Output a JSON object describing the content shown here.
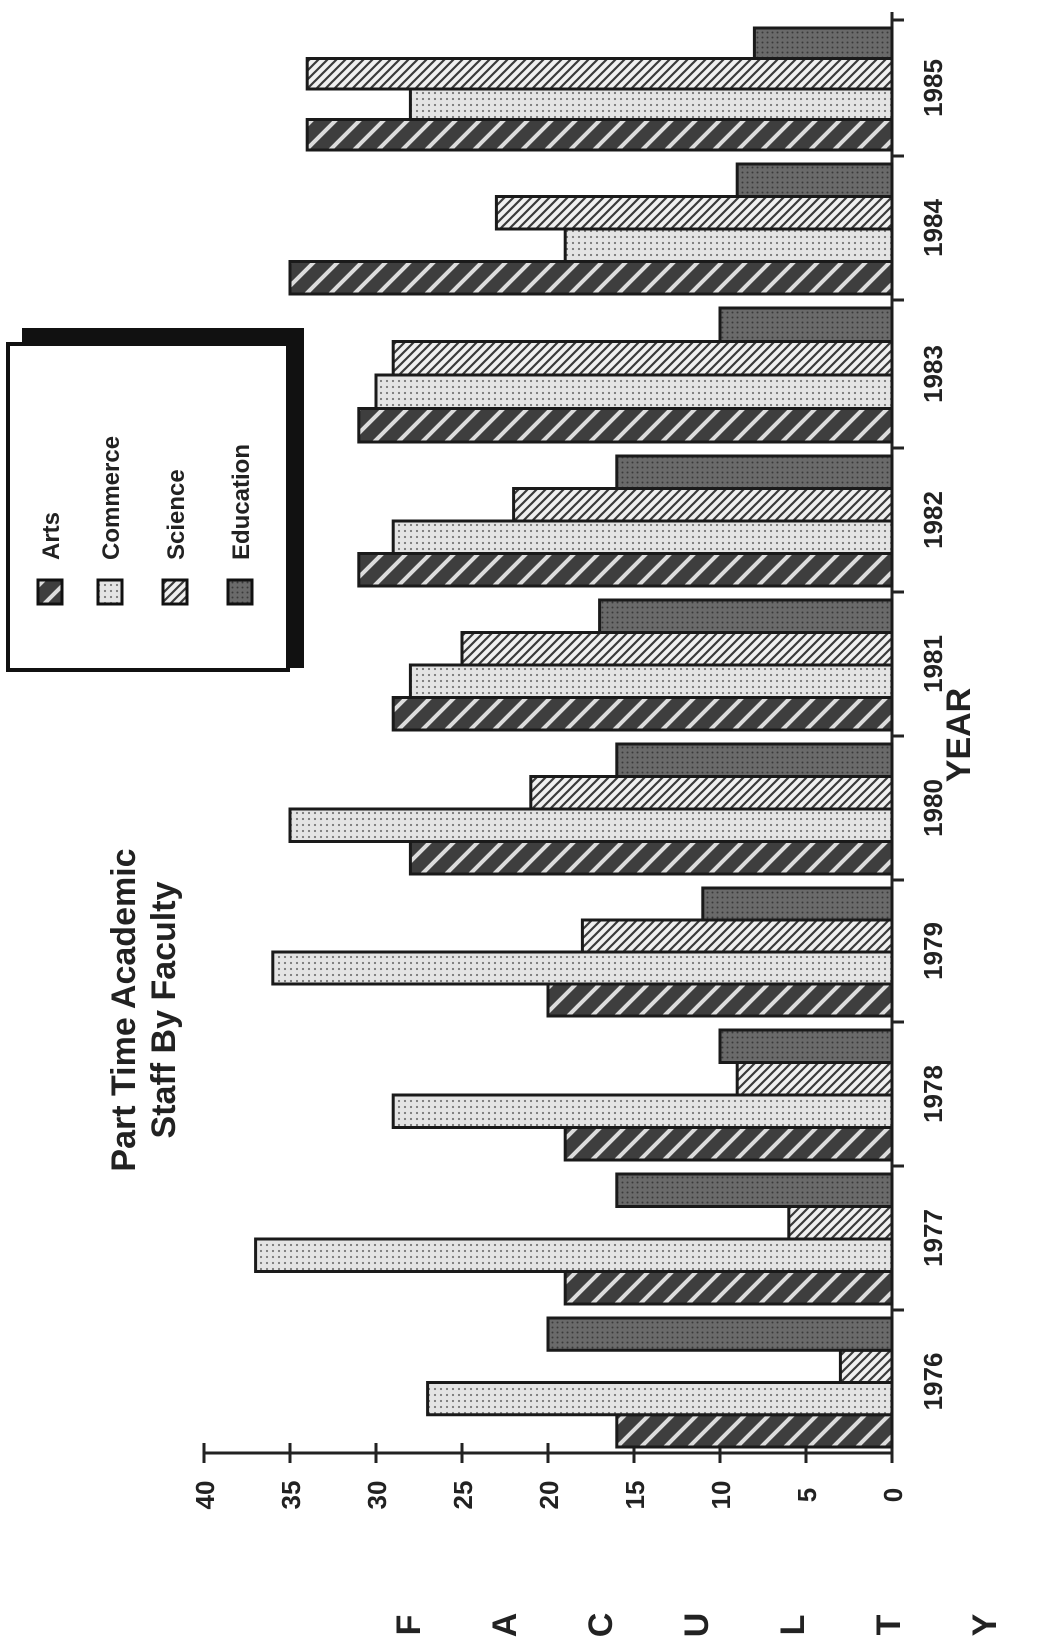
{
  "chart_data": {
    "type": "bar",
    "orientation": "horizontal (page rotated 90 degrees)",
    "title_lines": [
      "Part Time Academic",
      "Staff By Faculty"
    ],
    "xlabel": "YEAR",
    "ylabel": "FACULTY",
    "ylabel_letters": [
      "F",
      "A",
      "C",
      "U",
      "L",
      "T",
      "Y"
    ],
    "categories": [
      "1976",
      "1977",
      "1978",
      "1979",
      "1980",
      "1981",
      "1982",
      "1983",
      "1984",
      "1985"
    ],
    "ylim": [
      0,
      40
    ],
    "yticks": [
      "0",
      "5",
      "10",
      "15",
      "20",
      "25",
      "30",
      "35",
      "40"
    ],
    "legend_placement": "upper-right (rotated)",
    "series": [
      {
        "name": "Arts",
        "values": [
          16,
          19,
          19,
          20,
          28,
          29,
          31,
          31,
          35,
          34
        ],
        "pattern": "wide-hatch",
        "color": "#4a4a4a"
      },
      {
        "name": "Commerce",
        "values": [
          27,
          37,
          29,
          36,
          35,
          28,
          29,
          30,
          19,
          28
        ],
        "pattern": "dots",
        "color": "#d8d8d8"
      },
      {
        "name": "Science",
        "values": [
          3,
          6,
          9,
          18,
          21,
          25,
          22,
          29,
          23,
          34
        ],
        "pattern": "fine-hatch",
        "color": "#555555"
      },
      {
        "name": "Education",
        "values": [
          20,
          16,
          10,
          11,
          16,
          17,
          16,
          10,
          9,
          8
        ],
        "pattern": "dense-dots",
        "color": "#5e5e5e"
      }
    ]
  }
}
